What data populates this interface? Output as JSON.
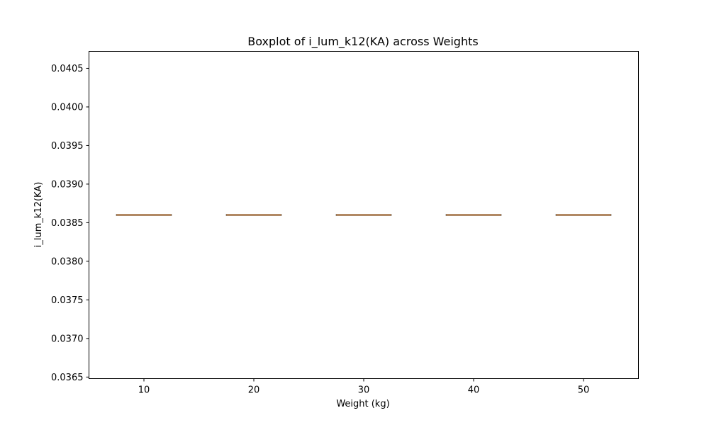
{
  "chart_data": {
    "type": "box",
    "title": "Boxplot of i_lum_k12(KA) across Weights",
    "xlabel": "Weight (kg)",
    "ylabel": "i_lum_k12(KA)",
    "categories": [
      "10",
      "20",
      "30",
      "40",
      "50"
    ],
    "x": [
      10,
      20,
      30,
      40,
      50
    ],
    "boxes": [
      {
        "x": 10,
        "min": 0.0386,
        "q1": 0.0386,
        "median": 0.0386,
        "q3": 0.0386,
        "max": 0.0386
      },
      {
        "x": 20,
        "min": 0.0386,
        "q1": 0.0386,
        "median": 0.0386,
        "q3": 0.0386,
        "max": 0.0386
      },
      {
        "x": 30,
        "min": 0.0386,
        "q1": 0.0386,
        "median": 0.0386,
        "q3": 0.0386,
        "max": 0.0386
      },
      {
        "x": 40,
        "min": 0.0386,
        "q1": 0.0386,
        "median": 0.0386,
        "q3": 0.0386,
        "max": 0.0386
      },
      {
        "x": 50,
        "min": 0.0386,
        "q1": 0.0386,
        "median": 0.0386,
        "q3": 0.0386,
        "max": 0.0386
      }
    ],
    "xlim": [
      5,
      55
    ],
    "ylim": [
      0.03648,
      0.04072
    ],
    "yticks": [
      "0.0365",
      "0.0370",
      "0.0375",
      "0.0380",
      "0.0385",
      "0.0390",
      "0.0395",
      "0.0400",
      "0.0405"
    ],
    "ytick_values": [
      0.0365,
      0.037,
      0.0375,
      0.038,
      0.0385,
      0.039,
      0.0395,
      0.04,
      0.0405
    ],
    "grid": false,
    "colors": {
      "box": "#000000",
      "median": "#e08a3c",
      "axes": "#000000"
    }
  }
}
